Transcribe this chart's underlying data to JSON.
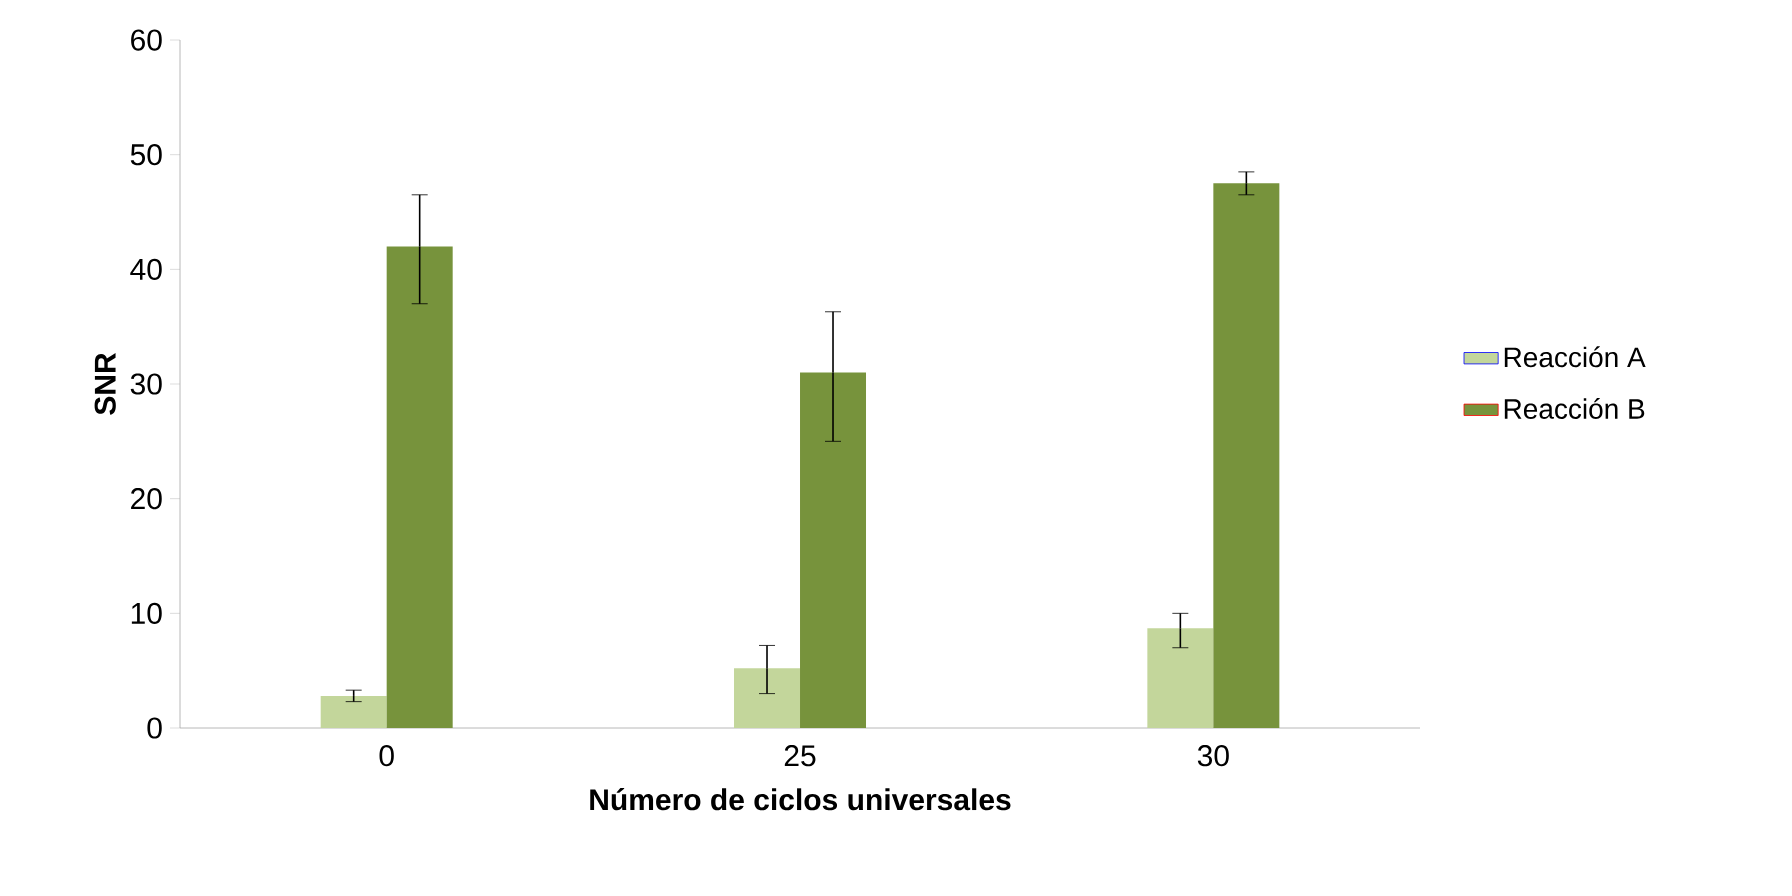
{
  "chart_data": {
    "type": "bar",
    "xlabel": "Número de ciclos universales",
    "ylabel": "SNR",
    "categories": [
      "0",
      "25",
      "30"
    ],
    "series": [
      {
        "name": "Reacción A",
        "color": "#c3d69b",
        "values": [
          2.8,
          5.2,
          8.7
        ],
        "errors": [
          [
            2.3,
            3.3
          ],
          [
            3.0,
            7.2
          ],
          [
            7.0,
            10.0
          ]
        ]
      },
      {
        "name": "Reacción B",
        "color": "#77933c",
        "values": [
          42.0,
          31.0,
          47.5
        ],
        "errors": [
          [
            37.0,
            46.5
          ],
          [
            25.0,
            36.3
          ],
          [
            46.5,
            48.5
          ]
        ]
      }
    ],
    "ylim": [
      0,
      60
    ],
    "yticks": [
      0,
      10,
      20,
      30,
      40,
      50,
      60
    ],
    "grid": false,
    "legend": "right"
  }
}
